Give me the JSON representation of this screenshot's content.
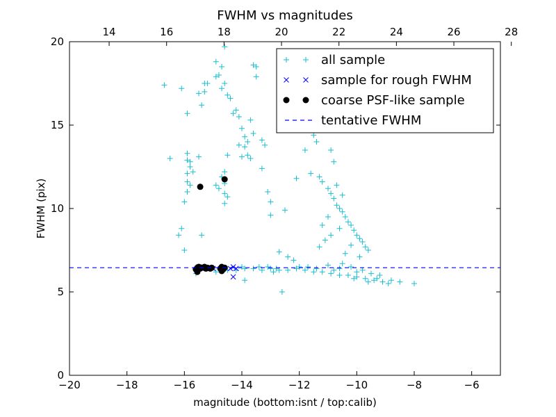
{
  "chart_data": {
    "type": "scatter",
    "title": "FWHM vs magnitudes",
    "xlabel": "magnitude (bottom:isnt / top:calib)",
    "ylabel": "FWHM (pix)",
    "xlim": [
      -20,
      -5
    ],
    "ylim": [
      0,
      20
    ],
    "top_xlim": [
      12.62,
      27.62
    ],
    "x_ticks": [
      -20,
      -18,
      -16,
      -14,
      -12,
      -10,
      -8,
      -6
    ],
    "x_tick_labels": [
      "−20",
      "−18",
      "−16",
      "−14",
      "−12",
      "−10",
      "−8",
      "−6"
    ],
    "y_ticks": [
      0,
      5,
      10,
      15,
      20
    ],
    "y_tick_labels": [
      "0",
      "5",
      "10",
      "15",
      "20"
    ],
    "top_x_ticks": [
      14,
      16,
      18,
      20,
      22,
      24,
      26,
      28
    ],
    "top_x_tick_labels": [
      "14",
      "16",
      "18",
      "20",
      "22",
      "24",
      "26",
      "28"
    ],
    "legend_position": "top-right",
    "series": [
      {
        "name": "all sample",
        "marker": "plus",
        "color": "#17becf",
        "points": [
          [
            -16.7,
            17.4
          ],
          [
            -16.1,
            17.2
          ],
          [
            -16.5,
            13.0
          ],
          [
            -15.9,
            15.7
          ],
          [
            -15.5,
            16.9
          ],
          [
            -15.4,
            16.2
          ],
          [
            -15.3,
            17.5
          ],
          [
            -15.3,
            17.0
          ],
          [
            -15.2,
            17.5
          ],
          [
            -14.9,
            18.8
          ],
          [
            -14.8,
            18.0
          ],
          [
            -14.7,
            18.5
          ],
          [
            -14.6,
            19.7
          ],
          [
            -14.6,
            17.5
          ],
          [
            -14.5,
            16.8
          ],
          [
            -14.4,
            16.6
          ],
          [
            -14.7,
            17.2
          ],
          [
            -14.9,
            17.9
          ],
          [
            -15.9,
            13.3
          ],
          [
            -15.9,
            12.9
          ],
          [
            -15.8,
            12.8
          ],
          [
            -15.8,
            12.5
          ],
          [
            -15.7,
            12.2
          ],
          [
            -15.9,
            12.1
          ],
          [
            -15.5,
            13.1
          ],
          [
            -15.9,
            11.6
          ],
          [
            -15.8,
            11.4
          ],
          [
            -15.9,
            11.0
          ],
          [
            -16.0,
            10.4
          ],
          [
            -16.1,
            8.8
          ],
          [
            -16.0,
            7.5
          ],
          [
            -16.2,
            8.4
          ],
          [
            -15.4,
            8.4
          ],
          [
            -14.6,
            12.2
          ],
          [
            -14.7,
            11.9
          ],
          [
            -14.6,
            11.5
          ],
          [
            -14.6,
            10.9
          ],
          [
            -14.5,
            10.7
          ],
          [
            -14.6,
            10.3
          ],
          [
            -14.8,
            11.2
          ],
          [
            -14.9,
            11.4
          ],
          [
            -14.5,
            13.2
          ],
          [
            -14.3,
            15.7
          ],
          [
            -14.2,
            15.9
          ],
          [
            -14.1,
            15.5
          ],
          [
            -14.0,
            14.8
          ],
          [
            -13.9,
            14.3
          ],
          [
            -13.8,
            14.0
          ],
          [
            -13.9,
            13.7
          ],
          [
            -13.8,
            13.2
          ],
          [
            -13.7,
            13.0
          ],
          [
            -14.0,
            13.1
          ],
          [
            -14.1,
            13.8
          ],
          [
            -13.6,
            14.5
          ],
          [
            -13.7,
            15.3
          ],
          [
            -13.5,
            17.9
          ],
          [
            -13.6,
            18.6
          ],
          [
            -13.5,
            18.5
          ],
          [
            -13.3,
            14.1
          ],
          [
            -13.2,
            13.8
          ],
          [
            -13.3,
            12.4
          ],
          [
            -13.1,
            11.0
          ],
          [
            -13.0,
            10.4
          ],
          [
            -13.0,
            9.6
          ],
          [
            -12.5,
            9.9
          ],
          [
            -12.1,
            11.8
          ],
          [
            -11.8,
            13.5
          ],
          [
            -11.5,
            14.4
          ],
          [
            -11.4,
            14.0
          ],
          [
            -11.6,
            12.1
          ],
          [
            -11.3,
            11.9
          ],
          [
            -11.2,
            11.6
          ],
          [
            -11.0,
            11.2
          ],
          [
            -10.9,
            10.9
          ],
          [
            -10.8,
            10.6
          ],
          [
            -10.7,
            10.2
          ],
          [
            -10.6,
            10.0
          ],
          [
            -10.5,
            9.8
          ],
          [
            -10.4,
            9.5
          ],
          [
            -10.3,
            9.2
          ],
          [
            -10.2,
            9.0
          ],
          [
            -10.1,
            8.7
          ],
          [
            -10.0,
            8.4
          ],
          [
            -9.9,
            8.2
          ],
          [
            -9.8,
            8.0
          ],
          [
            -9.7,
            7.7
          ],
          [
            -9.6,
            7.5
          ],
          [
            -10.8,
            12.8
          ],
          [
            -10.9,
            13.5
          ],
          [
            -10.7,
            11.4
          ],
          [
            -10.5,
            10.8
          ],
          [
            -10.6,
            8.8
          ],
          [
            -10.9,
            8.4
          ],
          [
            -11.1,
            8.1
          ],
          [
            -11.3,
            7.7
          ],
          [
            -10.2,
            7.8
          ],
          [
            -10.4,
            7.3
          ],
          [
            -9.9,
            7.1
          ],
          [
            -11.2,
            9.0
          ],
          [
            -11.0,
            9.5
          ],
          [
            -12.7,
            7.4
          ],
          [
            -12.4,
            7.1
          ],
          [
            -12.2,
            6.9
          ],
          [
            -12.6,
            5.0
          ],
          [
            -15.6,
            6.1
          ],
          [
            -14.9,
            6.2
          ],
          [
            -14.5,
            6.3
          ],
          [
            -14.2,
            6.3
          ],
          [
            -13.9,
            6.4
          ],
          [
            -13.6,
            6.4
          ],
          [
            -13.3,
            6.3
          ],
          [
            -13.0,
            6.4
          ],
          [
            -12.7,
            6.3
          ],
          [
            -12.4,
            6.3
          ],
          [
            -12.1,
            6.4
          ],
          [
            -11.8,
            6.3
          ],
          [
            -11.5,
            6.2
          ],
          [
            -11.2,
            6.2
          ],
          [
            -10.9,
            6.1
          ],
          [
            -10.6,
            6.0
          ],
          [
            -10.3,
            6.0
          ],
          [
            -10.0,
            5.9
          ],
          [
            -9.7,
            5.8
          ],
          [
            -9.4,
            5.7
          ],
          [
            -9.1,
            5.6
          ],
          [
            -8.8,
            5.7
          ],
          [
            -8.5,
            5.6
          ],
          [
            -8.0,
            5.5
          ],
          [
            -13.9,
            5.7
          ],
          [
            -12.9,
            6.2
          ],
          [
            -11.7,
            6.5
          ],
          [
            -11.0,
            6.6
          ],
          [
            -10.5,
            6.7
          ],
          [
            -10.2,
            6.5
          ],
          [
            -9.8,
            6.3
          ],
          [
            -9.5,
            6.1
          ],
          [
            -9.2,
            6.0
          ],
          [
            -9.6,
            5.6
          ],
          [
            -10.1,
            5.8
          ],
          [
            -10.8,
            6.3
          ],
          [
            -11.4,
            6.4
          ],
          [
            -12.0,
            6.5
          ],
          [
            -12.8,
            6.4
          ],
          [
            -13.4,
            6.5
          ],
          [
            -14.0,
            6.5
          ],
          [
            -13.1,
            6.5
          ],
          [
            -10.6,
            6.4
          ],
          [
            -10.0,
            6.2
          ],
          [
            -9.3,
            5.8
          ],
          [
            -8.9,
            5.5
          ]
        ]
      },
      {
        "name": "sample for rough FWHM",
        "marker": "x",
        "color": "#0000ff",
        "points": [
          [
            -14.3,
            6.5
          ],
          [
            -14.4,
            6.4
          ],
          [
            -14.2,
            6.4
          ],
          [
            -14.3,
            5.9
          ],
          [
            -15.4,
            6.4
          ],
          [
            -15.0,
            6.4
          ],
          [
            -14.7,
            6.4
          ],
          [
            -15.5,
            6.5
          ]
        ]
      },
      {
        "name": "coarse PSF-like sample",
        "marker": "circle",
        "color": "#000000",
        "points": [
          [
            -15.45,
            11.3
          ],
          [
            -14.6,
            11.75
          ],
          [
            -15.6,
            6.35
          ],
          [
            -15.55,
            6.45
          ],
          [
            -15.5,
            6.5
          ],
          [
            -15.45,
            6.4
          ],
          [
            -15.4,
            6.45
          ],
          [
            -15.3,
            6.5
          ],
          [
            -15.25,
            6.4
          ],
          [
            -15.2,
            6.45
          ],
          [
            -15.1,
            6.4
          ],
          [
            -15.05,
            6.45
          ],
          [
            -14.75,
            6.4
          ],
          [
            -14.7,
            6.5
          ],
          [
            -14.65,
            6.35
          ],
          [
            -14.6,
            6.45
          ],
          [
            -15.55,
            6.2
          ],
          [
            -14.7,
            6.25
          ]
        ]
      },
      {
        "name": "tentative FWHM",
        "marker": "dashed-line",
        "color": "#0000ff",
        "y": 6.45
      }
    ]
  }
}
